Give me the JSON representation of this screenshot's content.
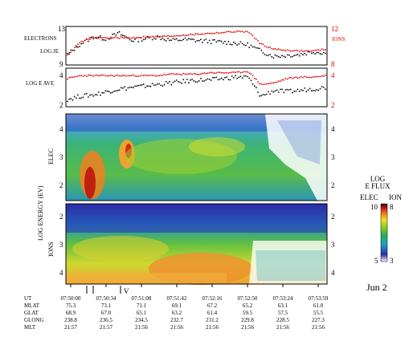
{
  "chart_data": {
    "type": "scatter",
    "panels": [
      {
        "id": "log_je",
        "left_labels": [
          "ELECTRONS",
          "LOG JE"
        ],
        "right_label": "IONS",
        "left_axis": {
          "ticks": [
            9,
            13
          ],
          "range": [
            9,
            13
          ]
        },
        "right_axis": {
          "ticks": [
            8,
            12
          ],
          "range": [
            8,
            12
          ]
        },
        "series": [
          {
            "color": "#000000",
            "x": [
              0.0,
              0.05,
              0.1,
              0.15,
              0.2,
              0.25,
              0.3,
              0.35,
              0.4,
              0.45,
              0.5,
              0.55,
              0.6,
              0.65,
              0.7,
              0.75,
              0.8,
              0.85,
              0.9,
              0.95,
              1.0
            ],
            "y": [
              10.0,
              11.2,
              12.0,
              11.8,
              12.4,
              11.6,
              11.8,
              12.0,
              11.6,
              11.7,
              11.6,
              11.5,
              11.4,
              11.3,
              11.1,
              10.4,
              9.8,
              9.9,
              10.0,
              10.3,
              10.2
            ]
          },
          {
            "color": "#e00000",
            "x": [
              0.0,
              0.05,
              0.1,
              0.15,
              0.2,
              0.25,
              0.3,
              0.35,
              0.4,
              0.45,
              0.5,
              0.55,
              0.6,
              0.65,
              0.7,
              0.75,
              0.8,
              0.85,
              0.9,
              0.95,
              1.0
            ],
            "y": [
              8.9,
              10.4,
              10.9,
              10.9,
              10.9,
              10.9,
              11.0,
              11.0,
              11.1,
              11.2,
              11.3,
              11.4,
              11.5,
              11.6,
              11.6,
              10.2,
              9.6,
              9.5,
              9.4,
              9.4,
              9.6
            ]
          }
        ]
      },
      {
        "id": "log_e_ave",
        "left_labels": [
          "LOG E AVE"
        ],
        "right_label": "",
        "left_axis": {
          "ticks": [
            2,
            4
          ],
          "range": [
            2,
            4.4
          ]
        },
        "right_axis": {
          "ticks": [
            2,
            4
          ],
          "range": [
            2,
            4.4
          ]
        },
        "series": [
          {
            "color": "#000000",
            "x": [
              0.0,
              0.05,
              0.1,
              0.15,
              0.2,
              0.25,
              0.3,
              0.35,
              0.4,
              0.45,
              0.5,
              0.55,
              0.6,
              0.65,
              0.7,
              0.75,
              0.8,
              0.85,
              0.9,
              0.95,
              1.0
            ],
            "y": [
              2.4,
              2.6,
              2.7,
              2.9,
              3.1,
              3.2,
              3.3,
              3.4,
              3.5,
              3.6,
              3.7,
              3.7,
              3.8,
              3.9,
              3.9,
              2.6,
              3.0,
              2.9,
              3.0,
              3.1,
              3.2
            ]
          },
          {
            "color": "#e00000",
            "x": [
              0.0,
              0.05,
              0.1,
              0.15,
              0.2,
              0.25,
              0.3,
              0.35,
              0.4,
              0.45,
              0.5,
              0.55,
              0.6,
              0.65,
              0.7,
              0.75,
              0.8,
              0.85,
              0.9,
              0.95,
              1.0
            ],
            "y": [
              3.8,
              4.0,
              4.0,
              4.0,
              4.0,
              4.0,
              4.0,
              4.0,
              4.1,
              4.1,
              4.1,
              4.2,
              4.2,
              4.2,
              4.3,
              3.4,
              3.5,
              3.8,
              3.9,
              3.9,
              4.0
            ]
          }
        ]
      }
    ],
    "spectrograms": {
      "elec_label": "ELEC",
      "ions_label": "IONS",
      "ylabel": "LOG ENERGY (EV)",
      "elec_ticks": [
        "4",
        "3",
        "2"
      ],
      "ions_ticks": [
        "2",
        "3",
        "4"
      ]
    },
    "colorbar": {
      "title_lines": [
        "LOG",
        "E FLUX"
      ],
      "elec_label": "ELEC",
      "ion_label": "ION",
      "top": "10",
      "top_right": "8",
      "bottom": "5",
      "bottom_right": "3"
    },
    "markers": [
      "V"
    ],
    "date_label": "Jun 2",
    "table": {
      "row_labels": [
        "UT",
        "MLAT",
        "GLAT",
        "GLONG",
        "MLT"
      ],
      "columns": [
        [
          "07:50:00",
          "75.3",
          "68.9",
          "238.8",
          "21:57"
        ],
        [
          "07:50:34",
          "73.1",
          "67.0",
          "236.5",
          "21:57"
        ],
        [
          "07:51:08",
          "71.1",
          "65.1",
          "234.5",
          "21:56"
        ],
        [
          "07:51:42",
          "69.1",
          "63.2",
          "232.7",
          "21:56"
        ],
        [
          "07:52:16",
          "67.2",
          "61.4",
          "231.2",
          "21:56"
        ],
        [
          "07:52:50",
          "65.2",
          "59.5",
          "229.8",
          "21:56"
        ],
        [
          "07:53:24",
          "63.1",
          "57.5",
          "228.5",
          "21:56"
        ],
        [
          "07:53:59",
          "61.0",
          "55.5",
          "227.3",
          "21:56"
        ]
      ]
    }
  }
}
